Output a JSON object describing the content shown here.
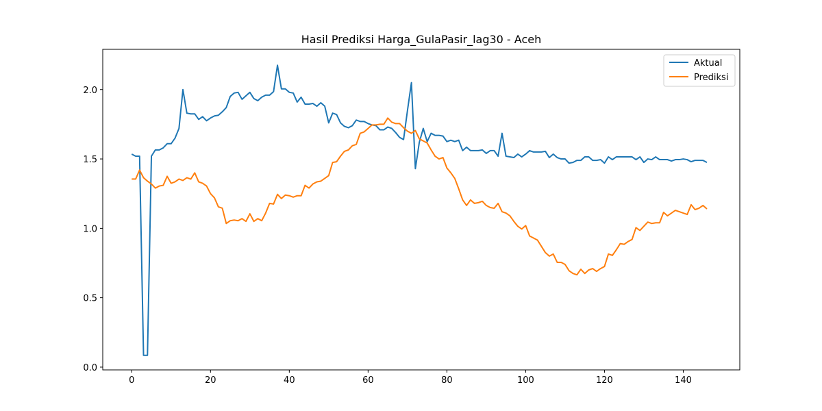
{
  "chart_data": {
    "type": "line",
    "title": "Hasil Prediksi Harga_GulaPasir_lag30 - Aceh",
    "xlabel": "",
    "ylabel": "",
    "xlim": [
      -7.35,
      154.35
    ],
    "ylim": [
      -0.02,
      2.29
    ],
    "xticks": [
      0,
      20,
      40,
      60,
      80,
      100,
      120,
      140
    ],
    "yticks": [
      0.0,
      0.5,
      1.0,
      1.5,
      2.0
    ],
    "ytick_labels": [
      "0.0",
      "0.5",
      "1.0",
      "1.5",
      "2.0"
    ],
    "grid": false,
    "legend": "top-right",
    "series": [
      {
        "name": "Aktual",
        "color": "#1f77b4",
        "values": [
          1.535,
          1.52,
          1.52,
          0.085,
          0.085,
          1.52,
          1.565,
          1.565,
          1.58,
          1.61,
          1.61,
          1.65,
          1.72,
          2.0,
          1.83,
          1.825,
          1.825,
          1.785,
          1.805,
          1.775,
          1.795,
          1.81,
          1.815,
          1.84,
          1.87,
          1.95,
          1.975,
          1.98,
          1.93,
          1.955,
          1.98,
          1.935,
          1.92,
          1.945,
          1.96,
          1.96,
          1.985,
          2.175,
          2.005,
          2.005,
          1.98,
          1.975,
          1.91,
          1.945,
          1.895,
          1.895,
          1.9,
          1.88,
          1.905,
          1.88,
          1.76,
          1.83,
          1.82,
          1.76,
          1.735,
          1.725,
          1.74,
          1.78,
          1.77,
          1.77,
          1.755,
          1.745,
          1.74,
          1.71,
          1.71,
          1.73,
          1.72,
          1.69,
          1.655,
          1.64,
          1.85,
          2.05,
          1.43,
          1.62,
          1.72,
          1.625,
          1.685,
          1.67,
          1.67,
          1.665,
          1.625,
          1.635,
          1.625,
          1.635,
          1.56,
          1.585,
          1.56,
          1.56,
          1.56,
          1.565,
          1.54,
          1.56,
          1.56,
          1.52,
          1.685,
          1.52,
          1.515,
          1.51,
          1.535,
          1.515,
          1.535,
          1.56,
          1.55,
          1.55,
          1.55,
          1.555,
          1.51,
          1.535,
          1.51,
          1.5,
          1.5,
          1.47,
          1.475,
          1.49,
          1.49,
          1.515,
          1.515,
          1.49,
          1.49,
          1.495,
          1.47,
          1.515,
          1.495,
          1.515,
          1.515,
          1.515,
          1.515,
          1.515,
          1.495,
          1.515,
          1.475,
          1.5,
          1.495,
          1.515,
          1.495,
          1.495,
          1.495,
          1.485,
          1.495,
          1.495,
          1.5,
          1.495,
          1.48,
          1.49,
          1.49,
          1.49,
          1.475
        ]
      },
      {
        "name": "Prediksi",
        "color": "#ff7f0e",
        "values": [
          1.355,
          1.355,
          1.42,
          1.365,
          1.34,
          1.32,
          1.29,
          1.305,
          1.31,
          1.375,
          1.325,
          1.335,
          1.355,
          1.345,
          1.365,
          1.355,
          1.4,
          1.335,
          1.325,
          1.305,
          1.25,
          1.22,
          1.155,
          1.145,
          1.035,
          1.055,
          1.06,
          1.055,
          1.07,
          1.05,
          1.105,
          1.05,
          1.07,
          1.055,
          1.11,
          1.18,
          1.175,
          1.245,
          1.215,
          1.24,
          1.235,
          1.225,
          1.235,
          1.235,
          1.31,
          1.29,
          1.32,
          1.335,
          1.34,
          1.36,
          1.38,
          1.475,
          1.48,
          1.52,
          1.555,
          1.565,
          1.595,
          1.605,
          1.685,
          1.695,
          1.72,
          1.745,
          1.745,
          1.75,
          1.75,
          1.795,
          1.765,
          1.755,
          1.755,
          1.725,
          1.7,
          1.685,
          1.705,
          1.645,
          1.63,
          1.615,
          1.565,
          1.52,
          1.5,
          1.51,
          1.435,
          1.4,
          1.36,
          1.285,
          1.205,
          1.165,
          1.205,
          1.18,
          1.185,
          1.195,
          1.165,
          1.15,
          1.145,
          1.18,
          1.12,
          1.11,
          1.09,
          1.05,
          1.015,
          0.995,
          1.02,
          0.945,
          0.93,
          0.915,
          0.87,
          0.825,
          0.8,
          0.815,
          0.755,
          0.755,
          0.74,
          0.695,
          0.675,
          0.665,
          0.705,
          0.675,
          0.7,
          0.71,
          0.69,
          0.71,
          0.725,
          0.815,
          0.805,
          0.845,
          0.89,
          0.885,
          0.905,
          0.92,
          1.005,
          0.985,
          1.015,
          1.045,
          1.035,
          1.04,
          1.04,
          1.115,
          1.09,
          1.11,
          1.13,
          1.12,
          1.11,
          1.1,
          1.17,
          1.135,
          1.145,
          1.165,
          1.14
        ]
      }
    ]
  }
}
